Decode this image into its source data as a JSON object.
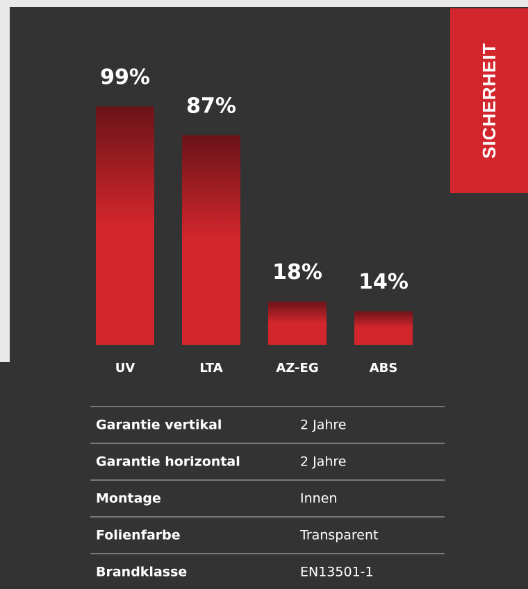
{
  "section": "SICHERHEIT",
  "chart_data": {
    "type": "bar",
    "categories": [
      "UV",
      "LTA",
      "AZ-EG",
      "ABS"
    ],
    "values": [
      99,
      87,
      18,
      14
    ],
    "value_labels": [
      "99%",
      "87%",
      "18%",
      "14%"
    ],
    "color": "#d3262c",
    "ylim": [
      0,
      100
    ]
  },
  "table": {
    "rows": [
      [
        "Garantie vertikal",
        "2 Jahre"
      ],
      [
        "Garantie horizontal",
        "2 Jahre"
      ],
      [
        "Montage",
        "Innen"
      ],
      [
        "Folienfarbe",
        "Transparent"
      ],
      [
        "Brandklasse",
        "EN13501-1"
      ]
    ]
  }
}
